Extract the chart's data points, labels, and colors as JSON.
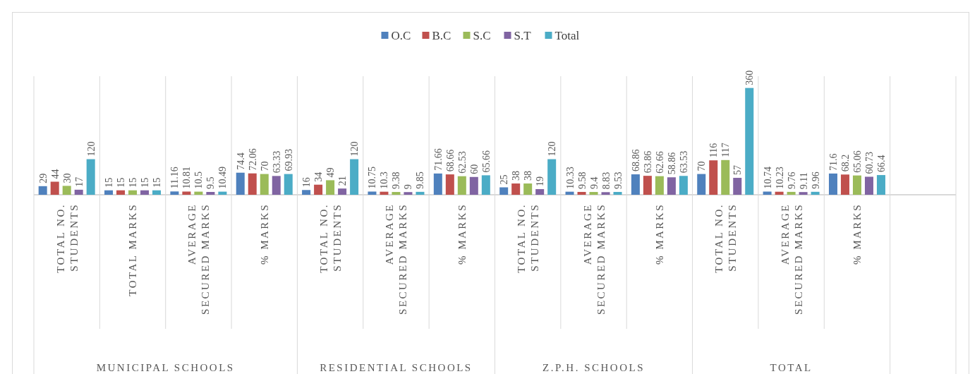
{
  "chart_data": {
    "type": "bar",
    "categories": [
      "TOTAL NO. STUDENTS",
      "TOTAL MARKS",
      "AVERAGE SECURED MARKS",
      "% MARKS",
      "TOTAL NO. STUDENTS",
      "AVERAGE SECURED MARKS",
      "% MARKS",
      "TOTAL NO. STUDENTS",
      "AVERAGE SECURED MARKS",
      "% MARKS",
      "TOTAL NO. STUDENTS",
      "AVERAGE SECURED MARKS",
      "% MARKS",
      null
    ],
    "series": [
      {
        "name": "O.C",
        "color": "#4f81bd",
        "values": [
          29,
          15,
          11.16,
          74.4,
          16,
          10.75,
          71.66,
          25,
          10.33,
          68.86,
          70,
          10.74,
          71.6,
          null
        ]
      },
      {
        "name": "B.C",
        "color": "#c0504d",
        "values": [
          44,
          15,
          10.81,
          72.06,
          34,
          10.3,
          68.66,
          38,
          9.58,
          63.86,
          116,
          10.23,
          68.2,
          null
        ]
      },
      {
        "name": "S.C",
        "color": "#9bbb59",
        "values": [
          30,
          15,
          10.5,
          70,
          49,
          9.38,
          62.53,
          38,
          9.4,
          62.66,
          117,
          9.76,
          65.06,
          null
        ]
      },
      {
        "name": "S.T",
        "color": "#8064a2",
        "values": [
          17,
          15,
          9.5,
          63.33,
          21,
          9,
          60,
          19,
          8.83,
          58.86,
          57,
          9.11,
          60.73,
          null
        ]
      },
      {
        "name": "Total",
        "color": "#4bacc6",
        "values": [
          120,
          15,
          10.49,
          69.93,
          120,
          9.85,
          65.66,
          120,
          9.53,
          63.53,
          360,
          9.96,
          66.4,
          null
        ]
      }
    ],
    "annotations": [
      "MUNICIPAL SCHOOLS",
      "RESIDENTIAL SCHOOLS",
      "Z.P.H. SCHOOLS",
      "TOTAL"
    ],
    "data_labels": true,
    "legend": "top"
  }
}
